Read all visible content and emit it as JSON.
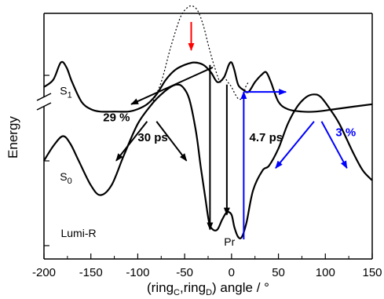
{
  "chart_data": {
    "type": "line",
    "xlabel": {
      "main": "(ring",
      "sub1": "C",
      "sep": ",ring",
      "sub2": "D",
      "tail": ") angle / °"
    },
    "ylabel": "Energy",
    "xlim": [
      -200,
      150
    ],
    "x_ticks": [
      "-200",
      "-150",
      "-100",
      "-50",
      "0",
      "50",
      "100",
      "150"
    ],
    "y_axis_break": true,
    "series": [
      {
        "state": "S1",
        "points": [
          [
            -200,
            0.7
          ],
          [
            -190,
            0.73
          ],
          [
            -182,
            0.8
          ],
          [
            -176,
            0.78
          ],
          [
            -170,
            0.72
          ],
          [
            -160,
            0.64
          ],
          [
            -150,
            0.61
          ],
          [
            -140,
            0.6
          ],
          [
            -125,
            0.6
          ],
          [
            -110,
            0.6
          ],
          [
            -100,
            0.61
          ],
          [
            -90,
            0.63
          ],
          [
            -80,
            0.67
          ],
          [
            -70,
            0.73
          ],
          [
            -60,
            0.77
          ],
          [
            -50,
            0.79
          ],
          [
            -40,
            0.8
          ],
          [
            -30,
            0.79
          ],
          [
            -22,
            0.76
          ],
          [
            -15,
            0.72
          ],
          [
            -8,
            0.74
          ],
          [
            -3,
            0.79
          ],
          [
            0,
            0.8
          ],
          [
            3,
            0.77
          ],
          [
            7,
            0.71
          ],
          [
            12,
            0.69
          ],
          [
            18,
            0.68
          ],
          [
            25,
            0.72
          ],
          [
            32,
            0.75
          ],
          [
            37,
            0.76
          ],
          [
            42,
            0.72
          ],
          [
            50,
            0.64
          ],
          [
            60,
            0.61
          ],
          [
            75,
            0.6
          ],
          [
            90,
            0.6
          ],
          [
            110,
            0.61
          ],
          [
            130,
            0.62
          ],
          [
            150,
            0.63
          ]
        ]
      },
      {
        "state": "S1-dotted",
        "points": [
          [
            -85,
            0.63
          ],
          [
            -75,
            0.72
          ],
          [
            -65,
            0.86
          ],
          [
            -55,
            0.98
          ],
          [
            -48,
            1.02
          ],
          [
            -42,
            1.03
          ],
          [
            -36,
            1.01
          ],
          [
            -30,
            0.95
          ],
          [
            -24,
            0.86
          ],
          [
            -18,
            0.78
          ],
          [
            -12,
            0.72
          ],
          [
            -8,
            0.74
          ],
          [
            -4,
            0.72
          ],
          [
            0,
            0.7
          ],
          [
            4,
            0.67
          ],
          [
            8,
            0.65
          ],
          [
            12,
            0.66
          ],
          [
            15,
            0.7
          ],
          [
            18,
            0.72
          ]
        ]
      },
      {
        "state": "S0",
        "points": [
          [
            -200,
            0.4
          ],
          [
            -190,
            0.46
          ],
          [
            -180,
            0.5
          ],
          [
            -172,
            0.47
          ],
          [
            -163,
            0.4
          ],
          [
            -150,
            0.3
          ],
          [
            -140,
            0.26
          ],
          [
            -128,
            0.3
          ],
          [
            -115,
            0.42
          ],
          [
            -100,
            0.55
          ],
          [
            -85,
            0.63
          ],
          [
            -75,
            0.67
          ],
          [
            -65,
            0.7
          ],
          [
            -58,
            0.71
          ],
          [
            -52,
            0.7
          ],
          [
            -45,
            0.65
          ],
          [
            -38,
            0.52
          ],
          [
            -33,
            0.38
          ],
          [
            -28,
            0.25
          ],
          [
            -24,
            0.15
          ],
          [
            -20,
            0.12
          ],
          [
            -15,
            0.12
          ],
          [
            -10,
            0.16
          ],
          [
            -5,
            0.19
          ],
          [
            0,
            0.18
          ],
          [
            3,
            0.13
          ],
          [
            7,
            0.09
          ],
          [
            11,
            0.09
          ],
          [
            16,
            0.15
          ],
          [
            23,
            0.28
          ],
          [
            33,
            0.36
          ],
          [
            40,
            0.38
          ],
          [
            50,
            0.45
          ],
          [
            60,
            0.55
          ],
          [
            70,
            0.62
          ],
          [
            80,
            0.66
          ],
          [
            88,
            0.67
          ],
          [
            95,
            0.66
          ],
          [
            105,
            0.61
          ],
          [
            115,
            0.55
          ],
          [
            130,
            0.43
          ],
          [
            140,
            0.36
          ],
          [
            150,
            0.32
          ]
        ]
      }
    ],
    "arrows": [
      {
        "color": "#ff0000",
        "from": [
          -43,
          0.965
        ],
        "to": [
          -43,
          0.85
        ]
      },
      {
        "color": "#000000",
        "from": [
          -20,
          0.78
        ],
        "to": [
          -107,
          0.63
        ]
      },
      {
        "color": "#000000",
        "from": [
          -23,
          0.79
        ],
        "to": [
          -23,
          0.12
        ]
      },
      {
        "color": "#000000",
        "from": [
          -5,
          0.71
        ],
        "to": [
          -5,
          0.18
        ]
      },
      {
        "color": "#0000ff",
        "from": [
          13,
          0.08
        ],
        "to": [
          13,
          0.68
        ]
      },
      {
        "color": "#0000ff",
        "from": [
          14,
          0.68
        ],
        "to": [
          58,
          0.68
        ]
      },
      {
        "color": "#000000",
        "from": [
          -90,
          0.56
        ],
        "to": [
          -123,
          0.4
        ]
      },
      {
        "color": "#000000",
        "from": [
          -80,
          0.56
        ],
        "to": [
          -48,
          0.4
        ]
      },
      {
        "color": "#0000ff",
        "from": [
          88,
          0.56
        ],
        "to": [
          47,
          0.37
        ]
      },
      {
        "color": "#0000ff",
        "from": [
          96,
          0.56
        ],
        "to": [
          123,
          0.37
        ]
      }
    ],
    "annotations": [
      {
        "text": "S",
        "sub": "1",
        "x": -183,
        "y": 0.67,
        "color": "#000000",
        "bold": false
      },
      {
        "text": "S",
        "sub": "0",
        "x": -183,
        "y": 0.32,
        "color": "#000000",
        "bold": false
      },
      {
        "text": "Lumi-R",
        "x": -182,
        "y": 0.09,
        "color": "#000000",
        "bold": false
      },
      {
        "text": "Pr",
        "x": -8,
        "y": 0.055,
        "color": "#000000",
        "bold": false
      },
      {
        "text": "29 %",
        "x": -137,
        "y": 0.56,
        "color": "#000000",
        "bold": true
      },
      {
        "text": "30 ps",
        "x": -100,
        "y": 0.48,
        "color": "#000000",
        "bold": true
      },
      {
        "text": "4.7 ps",
        "x": 19,
        "y": 0.48,
        "color": "#000000",
        "bold": true
      },
      {
        "text": "3 %",
        "x": 111,
        "y": 0.5,
        "color": "#0000ff",
        "bold": true
      }
    ]
  }
}
